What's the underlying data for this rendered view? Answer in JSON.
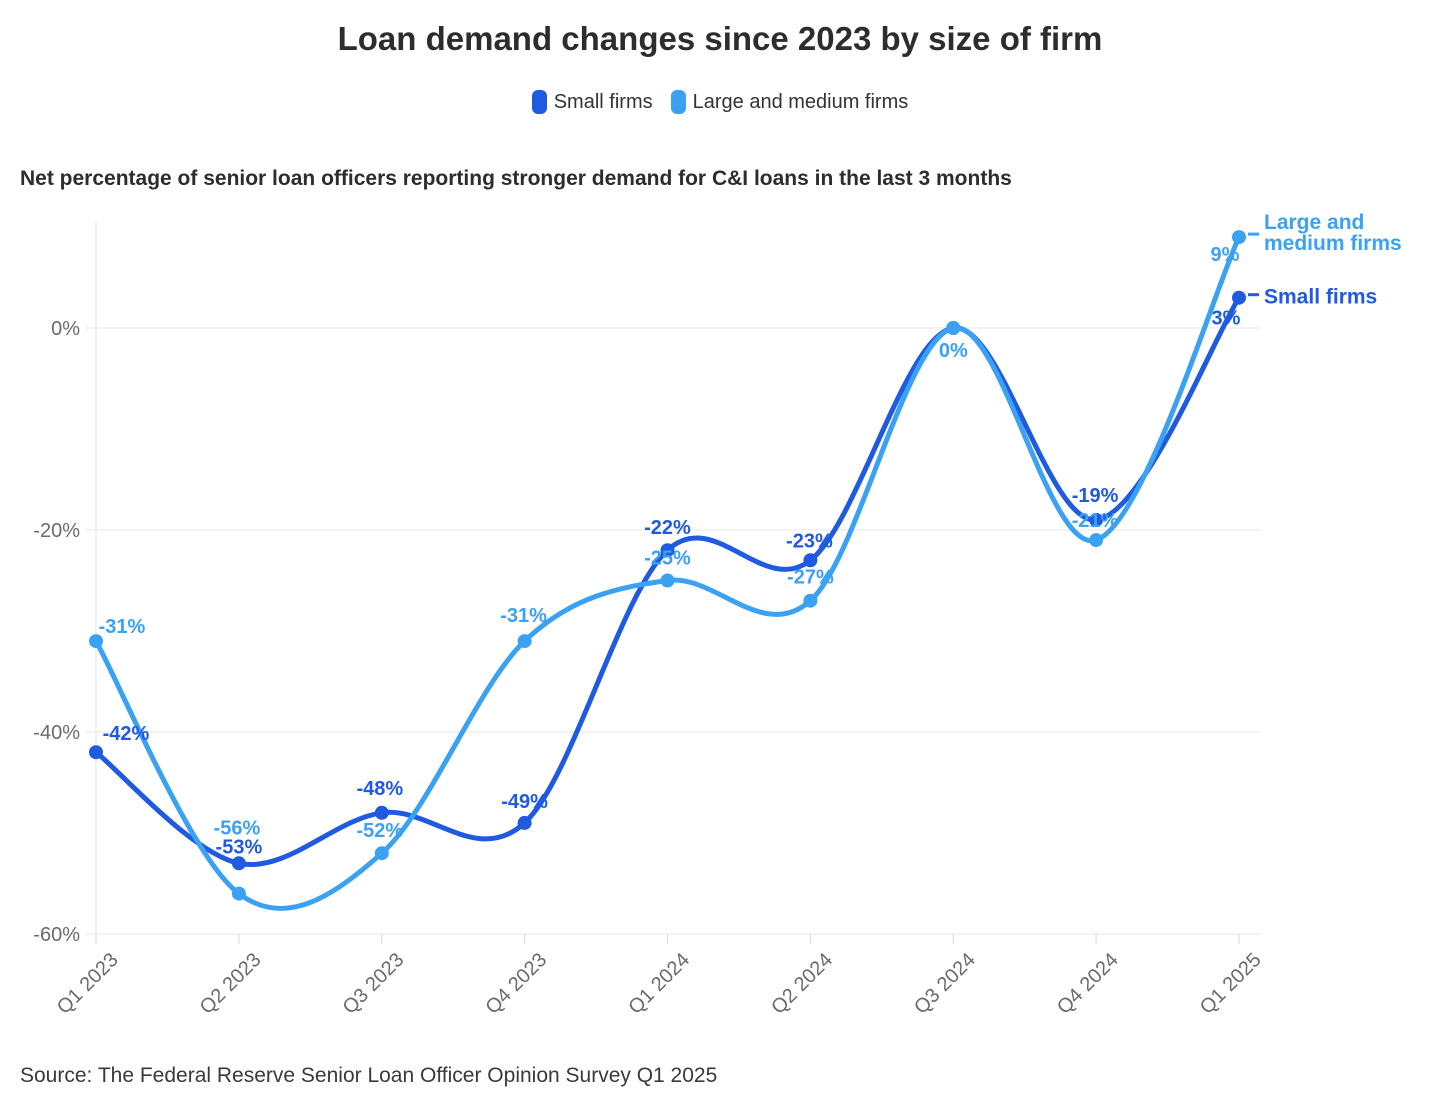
{
  "title": "Loan demand changes since 2023 by size of firm",
  "subtitle": "Net percentage of senior loan officers reporting stronger demand for C&I loans in the last 3 months",
  "source": "Source: The Federal Reserve Senior Loan Officer Opinion Survey Q1 2025",
  "colors": {
    "small_firms": "#1f5ae0",
    "large_medium_firms": "#3ba1f2",
    "grid": "#e7e7e7",
    "tick": "#d9d9d9",
    "axis_text": "#6b6b6b",
    "title_text": "#2d2d2d",
    "source_text": "#3a3a3a"
  },
  "chart_data": {
    "type": "line",
    "x": [
      "Q1 2023",
      "Q2 2023",
      "Q3 2023",
      "Q4 2023",
      "Q1 2024",
      "Q2 2024",
      "Q3 2024",
      "Q4 2024",
      "Q1 2025"
    ],
    "series": [
      {
        "name": "Small firms",
        "color": "#1f5ae0",
        "values": [
          -42,
          -53,
          -48,
          -49,
          -22,
          -23,
          0,
          -19,
          3
        ],
        "point_labels": [
          "-42%",
          "-53%",
          "-48%",
          "-49%",
          "-22%",
          "-23%",
          null,
          "-19%",
          "3%"
        ],
        "end_label": "Small firms"
      },
      {
        "name": "Large and medium firms",
        "color": "#3ba1f2",
        "values": [
          -31,
          -56,
          -52,
          -31,
          -25,
          -27,
          0,
          -21,
          9
        ],
        "point_labels": [
          "-31%",
          "-56%",
          "-52%",
          "-31%",
          "-25%",
          "-27%",
          "0%",
          "-21%",
          "9%"
        ],
        "end_label": "Large and\nmedium firms"
      }
    ],
    "yticks": [
      0,
      -20,
      -40,
      -60
    ],
    "ytick_labels": [
      "0%",
      "-20%",
      "-40%",
      "-60%"
    ],
    "ylim": [
      -60,
      10
    ],
    "grid": "horizontal",
    "legend_position": "top",
    "curve": "smooth"
  }
}
